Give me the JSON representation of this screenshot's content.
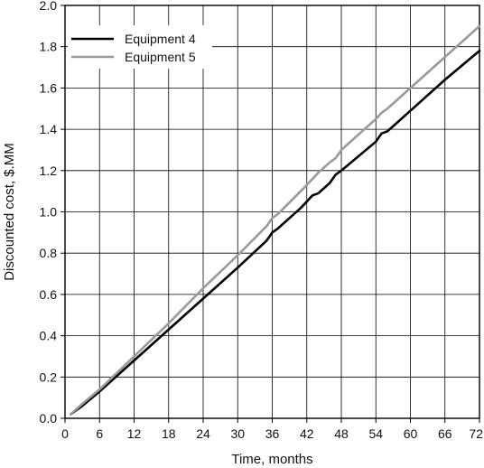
{
  "chart_data": {
    "type": "line",
    "title": "",
    "xlabel": "Time, months",
    "ylabel": "Discounted cost, $.MM",
    "xlim": [
      0,
      72
    ],
    "ylim": [
      0,
      2.0
    ],
    "x_ticks": [
      "0",
      "6",
      "12",
      "18",
      "24",
      "30",
      "36",
      "42",
      "48",
      "54",
      "60",
      "66",
      "72"
    ],
    "y_ticks": [
      "0.0",
      "0.2",
      "0.4",
      "0.6",
      "0.8",
      "1.0",
      "1.2",
      "1.4",
      "1.6",
      "1.8",
      "2.0"
    ],
    "grid": true,
    "legend_position": "top-left",
    "series": [
      {
        "name": "Equipment 4",
        "color": "#000000",
        "x": [
          1,
          3,
          6,
          12,
          18,
          24,
          30,
          35,
          36,
          37,
          41,
          42,
          43,
          44,
          46,
          47,
          48,
          54,
          55,
          56,
          60,
          66,
          72
        ],
        "y": [
          0.02,
          0.06,
          0.13,
          0.28,
          0.43,
          0.58,
          0.73,
          0.86,
          0.9,
          0.92,
          1.02,
          1.05,
          1.08,
          1.09,
          1.14,
          1.18,
          1.2,
          1.34,
          1.38,
          1.39,
          1.49,
          1.64,
          1.78
        ]
      },
      {
        "name": "Equipment 5",
        "color": "#9a9a9a",
        "x": [
          1,
          3,
          6,
          12,
          18,
          24,
          30,
          35,
          36,
          37,
          42,
          43,
          44,
          46,
          47,
          48,
          54,
          55,
          56,
          60,
          66,
          72
        ],
        "y": [
          0.02,
          0.07,
          0.14,
          0.3,
          0.46,
          0.63,
          0.79,
          0.93,
          0.97,
          0.99,
          1.13,
          1.16,
          1.19,
          1.24,
          1.26,
          1.3,
          1.45,
          1.48,
          1.5,
          1.6,
          1.75,
          1.9
        ]
      }
    ]
  }
}
